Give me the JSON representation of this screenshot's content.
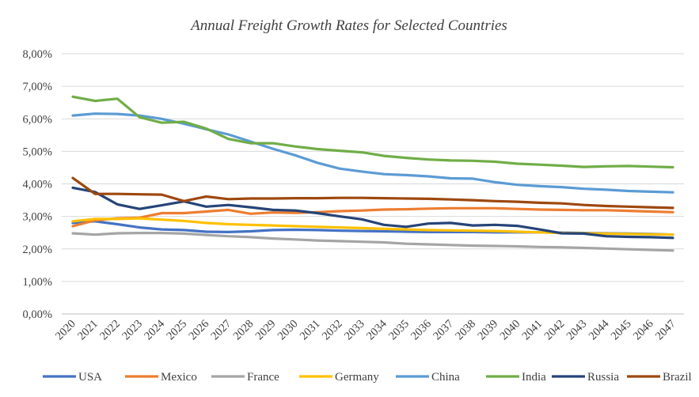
{
  "chart_data": {
    "type": "line",
    "title": "Annual Freight Growth Rates for Selected Countries",
    "xlabel": "",
    "ylabel": "",
    "ylim": [
      0,
      0.08
    ],
    "y_ticks": [
      "0,00%",
      "1,00%",
      "2,00%",
      "3,00%",
      "4,00%",
      "5,00%",
      "6,00%",
      "7,00%",
      "8,00%"
    ],
    "grid": "horizontal",
    "legend_position": "bottom",
    "x": [
      "2020",
      "2021",
      "2022",
      "2023",
      "2024",
      "2025",
      "2026",
      "2027",
      "2028",
      "2029",
      "2030",
      "2031",
      "2032",
      "2033",
      "2034",
      "2035",
      "2036",
      "2037",
      "2038",
      "2039",
      "2040",
      "2041",
      "2042",
      "2043",
      "2044",
      "2045",
      "2046",
      "2047"
    ],
    "series": [
      {
        "name": "USA",
        "color": "#4472C4",
        "values": [
          0.028,
          0.0285,
          0.0276,
          0.0266,
          0.026,
          0.0258,
          0.0253,
          0.0252,
          0.0254,
          0.0258,
          0.0259,
          0.0258,
          0.0256,
          0.0255,
          0.0254,
          0.0253,
          0.0252,
          0.0252,
          0.0252,
          0.0251,
          0.0251,
          0.0251,
          0.025,
          0.0249,
          0.0248,
          0.0247,
          0.0246,
          0.0244
        ]
      },
      {
        "name": "Mexico",
        "color": "#ED7D31",
        "values": [
          0.027,
          0.0288,
          0.0294,
          0.0296,
          0.031,
          0.031,
          0.0315,
          0.032,
          0.0308,
          0.0312,
          0.0311,
          0.0313,
          0.0316,
          0.0318,
          0.0321,
          0.0322,
          0.0324,
          0.0325,
          0.0325,
          0.0325,
          0.0323,
          0.0321,
          0.032,
          0.0319,
          0.0319,
          0.0317,
          0.0315,
          0.0313
        ]
      },
      {
        "name": "France",
        "color": "#A5A5A5",
        "values": [
          0.0248,
          0.0244,
          0.0248,
          0.0249,
          0.0249,
          0.0247,
          0.0243,
          0.0239,
          0.0236,
          0.0232,
          0.0229,
          0.0226,
          0.0224,
          0.0222,
          0.022,
          0.0216,
          0.0214,
          0.0212,
          0.021,
          0.0209,
          0.0208,
          0.0206,
          0.0205,
          0.0203,
          0.0201,
          0.0199,
          0.0197,
          0.0195
        ]
      },
      {
        "name": "Germany",
        "color": "#FFC000",
        "values": [
          0.0285,
          0.0292,
          0.0292,
          0.0294,
          0.029,
          0.0286,
          0.028,
          0.0276,
          0.0274,
          0.0272,
          0.027,
          0.0268,
          0.0266,
          0.0264,
          0.0262,
          0.026,
          0.0258,
          0.0257,
          0.0256,
          0.0255,
          0.0253,
          0.0251,
          0.0249,
          0.0248,
          0.0247,
          0.0246,
          0.0245,
          0.0244
        ]
      },
      {
        "name": "China",
        "color": "#5B9BD5",
        "values": [
          0.061,
          0.0616,
          0.0615,
          0.061,
          0.06,
          0.0585,
          0.0568,
          0.0552,
          0.053,
          0.0508,
          0.0488,
          0.0465,
          0.0447,
          0.0438,
          0.043,
          0.0427,
          0.0423,
          0.0417,
          0.0416,
          0.0405,
          0.0397,
          0.0393,
          0.039,
          0.0385,
          0.0382,
          0.0378,
          0.0376,
          0.0374
        ]
      },
      {
        "name": "India",
        "color": "#70AD47",
        "values": [
          0.0668,
          0.0655,
          0.0662,
          0.0605,
          0.0588,
          0.0591,
          0.057,
          0.0538,
          0.0525,
          0.0525,
          0.0515,
          0.0507,
          0.0502,
          0.0497,
          0.0486,
          0.048,
          0.0475,
          0.0472,
          0.0471,
          0.0468,
          0.0462,
          0.0459,
          0.0456,
          0.0452,
          0.0454,
          0.0455,
          0.0453,
          0.0451
        ]
      },
      {
        "name": "Russia",
        "color": "#264478",
        "values": [
          0.0388,
          0.0375,
          0.0337,
          0.0323,
          0.0334,
          0.0346,
          0.033,
          0.0335,
          0.0328,
          0.032,
          0.0318,
          0.031,
          0.03,
          0.0291,
          0.0274,
          0.0268,
          0.0278,
          0.028,
          0.0272,
          0.0274,
          0.0271,
          0.026,
          0.0248,
          0.0247,
          0.0239,
          0.0237,
          0.0236,
          0.0234
        ]
      },
      {
        "name": "Brazil",
        "color": "#9E480E",
        "values": [
          0.0418,
          0.0369,
          0.0369,
          0.0368,
          0.0367,
          0.0347,
          0.0361,
          0.0353,
          0.0355,
          0.0355,
          0.0356,
          0.0356,
          0.0357,
          0.0357,
          0.0356,
          0.0355,
          0.0354,
          0.0352,
          0.035,
          0.0347,
          0.0345,
          0.0342,
          0.034,
          0.0335,
          0.0332,
          0.033,
          0.0328,
          0.0326
        ]
      }
    ]
  }
}
